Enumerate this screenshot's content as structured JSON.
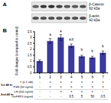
{
  "panel_labels": [
    "A",
    "B"
  ],
  "blot": {
    "bands": [
      {
        "label": "β-Catenin",
        "size": "92 kDa"
      },
      {
        "label": "β-actin",
        "size": "42 kDa"
      }
    ]
  },
  "chart_data": {
    "type": "bar",
    "ylabel": "Fold changes (compared to control)",
    "categories": [
      "1",
      "2",
      "3",
      "4",
      "5",
      "6",
      "7"
    ],
    "values": [
      1,
      2.7,
      3.0,
      2.3,
      1.4,
      1.3,
      1.7
    ],
    "errors": [
      0.1,
      0.2,
      0.25,
      0.15,
      0.1,
      0.1,
      0.15
    ],
    "annotations": [
      null,
      "a",
      "a",
      "a,b",
      "b",
      "b",
      "b"
    ],
    "color": "#3b3b9e",
    "ylim": [
      0,
      3.5
    ],
    "yticks": [
      0,
      0.5,
      1,
      1.5,
      2,
      2.5,
      3,
      3.5
    ]
  },
  "table": {
    "groups": [
      {
        "label": "1st 48 hr",
        "rows": [
          {
            "label": "T (0.1 nM)",
            "cells": [
              "-",
              "+",
              "+",
              "+",
              "+",
              "+",
              "+"
            ]
          },
          {
            "label": "FSH (50 ng/ml)",
            "cells": [
              "-",
              "+",
              "+",
              "+",
              "+",
              "+",
              "+"
            ]
          }
        ]
      },
      {
        "label": "2nd 48 hr",
        "rows": [
          {
            "label": "LH (500 ng/ml)",
            "cells": [
              "-",
              "-",
              "+",
              "+",
              "+",
              "+",
              "-"
            ]
          },
          {
            "label": "rhsFRP4 (ng/ml)",
            "cells": [
              "-",
              "-",
              "-",
              "0.5",
              "5",
              "50",
              "0.5"
            ]
          }
        ]
      }
    ]
  }
}
